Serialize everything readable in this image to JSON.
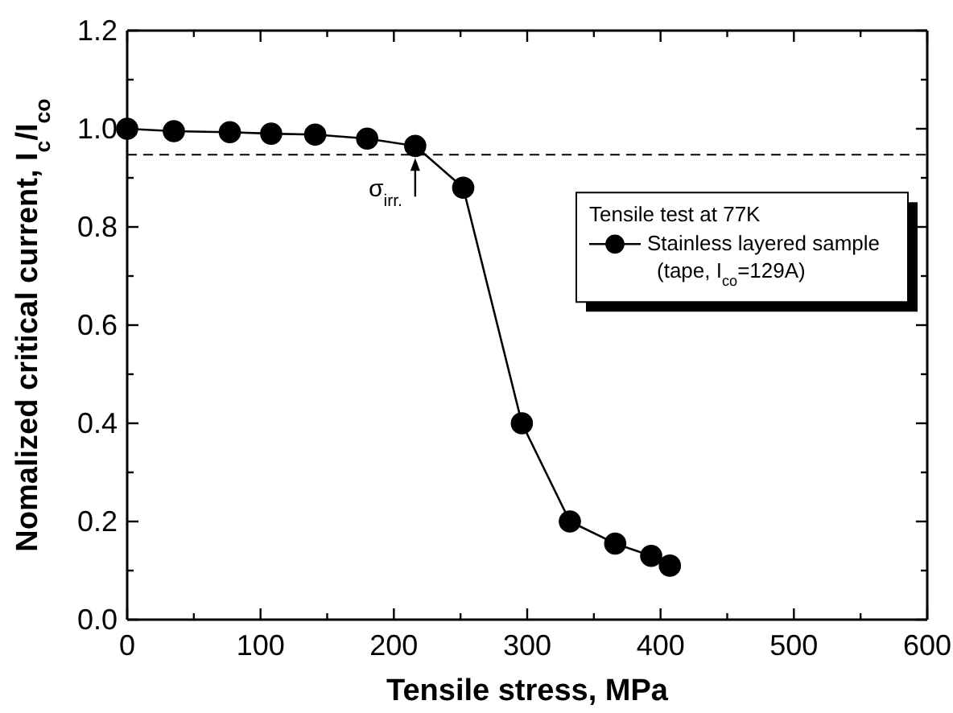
{
  "chart_data": {
    "type": "line",
    "xlabel": "Tensile stress,  MPa",
    "ylabel": "Nomalized critical current, I$_{c}$/I$_{co}$",
    "x": [
      0,
      35,
      77,
      108,
      141,
      180,
      216,
      252,
      296,
      332,
      366,
      393,
      407
    ],
    "series": [
      {
        "name": "Stainless layered sample\n(tape, I$_{co}$=129A)",
        "color": "#000000",
        "values": [
          1.0,
          0.995,
          0.993,
          0.99,
          0.988,
          0.98,
          0.965,
          0.88,
          0.4,
          0.2,
          0.155,
          0.13,
          0.11
        ]
      }
    ],
    "xlim": [
      0,
      600
    ],
    "ylim": [
      0,
      1.2
    ],
    "xticks": [
      0,
      {
        "value": 50,
        "label": null
      },
      100,
      {
        "value": 150,
        "label": null
      },
      200,
      {
        "value": 250,
        "label": null
      },
      300,
      {
        "value": 350,
        "label": null
      },
      400,
      {
        "value": 450,
        "label": null
      },
      500,
      {
        "value": 550,
        "label": null
      },
      600
    ],
    "yticks": [
      {
        "value": 0,
        "label": "0.0"
      },
      {
        "value": 0.1,
        "label": null
      },
      0.2,
      {
        "value": 0.3,
        "label": null
      },
      0.4,
      {
        "value": 0.5,
        "label": null
      },
      0.6,
      {
        "value": 0.7,
        "label": null
      },
      0.8,
      {
        "value": 0.9,
        "label": null
      },
      {
        "value": 1,
        "label": "1.0"
      },
      {
        "value": 1.1,
        "label": null
      },
      1.2
    ],
    "ref_lines": [
      {
        "axis": "y",
        "value": 0.947,
        "line_style": "dashed"
      }
    ],
    "annotations": [
      {
        "text": "σ$_{irr.}$",
        "x": 216,
        "y": 0.947
      }
    ],
    "legend_title": "Tensile test at 77K",
    "legend": "right",
    "marker": "circle",
    "line_style": "solid",
    "grid": false
  }
}
